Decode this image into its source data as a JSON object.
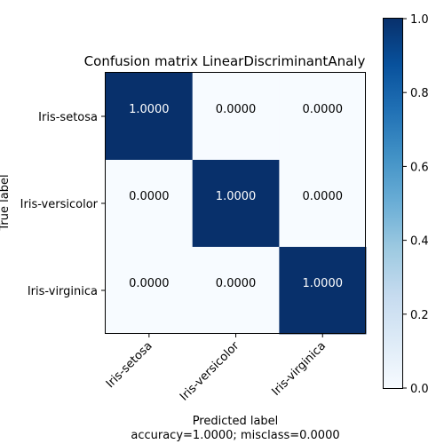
{
  "chart_data": {
    "type": "heatmap",
    "title": "Confusion matrix LinearDiscriminantAnaly",
    "xlabel": "Predicted label",
    "xlabel_sub": "accuracy=1.0000; misclass=0.0000",
    "ylabel": "True label",
    "x_categories": [
      "Iris-setosa",
      "Iris-versicolor",
      "Iris-virginica"
    ],
    "y_categories": [
      "Iris-setosa",
      "Iris-versicolor",
      "Iris-virginica"
    ],
    "values": [
      [
        1.0,
        0.0,
        0.0
      ],
      [
        0.0,
        1.0,
        0.0
      ],
      [
        0.0,
        0.0,
        1.0
      ]
    ],
    "cell_labels": [
      [
        "1.0000",
        "0.0000",
        "0.0000"
      ],
      [
        "0.0000",
        "1.0000",
        "0.0000"
      ],
      [
        "0.0000",
        "0.0000",
        "1.0000"
      ]
    ],
    "colormap": "Blues",
    "colormap_low": "#f7fbff",
    "colormap_high": "#08306b",
    "colorbar": {
      "range": [
        0,
        1
      ],
      "ticks": [
        "0.0",
        "0.2",
        "0.4",
        "0.6",
        "0.8",
        "1.0"
      ]
    }
  }
}
